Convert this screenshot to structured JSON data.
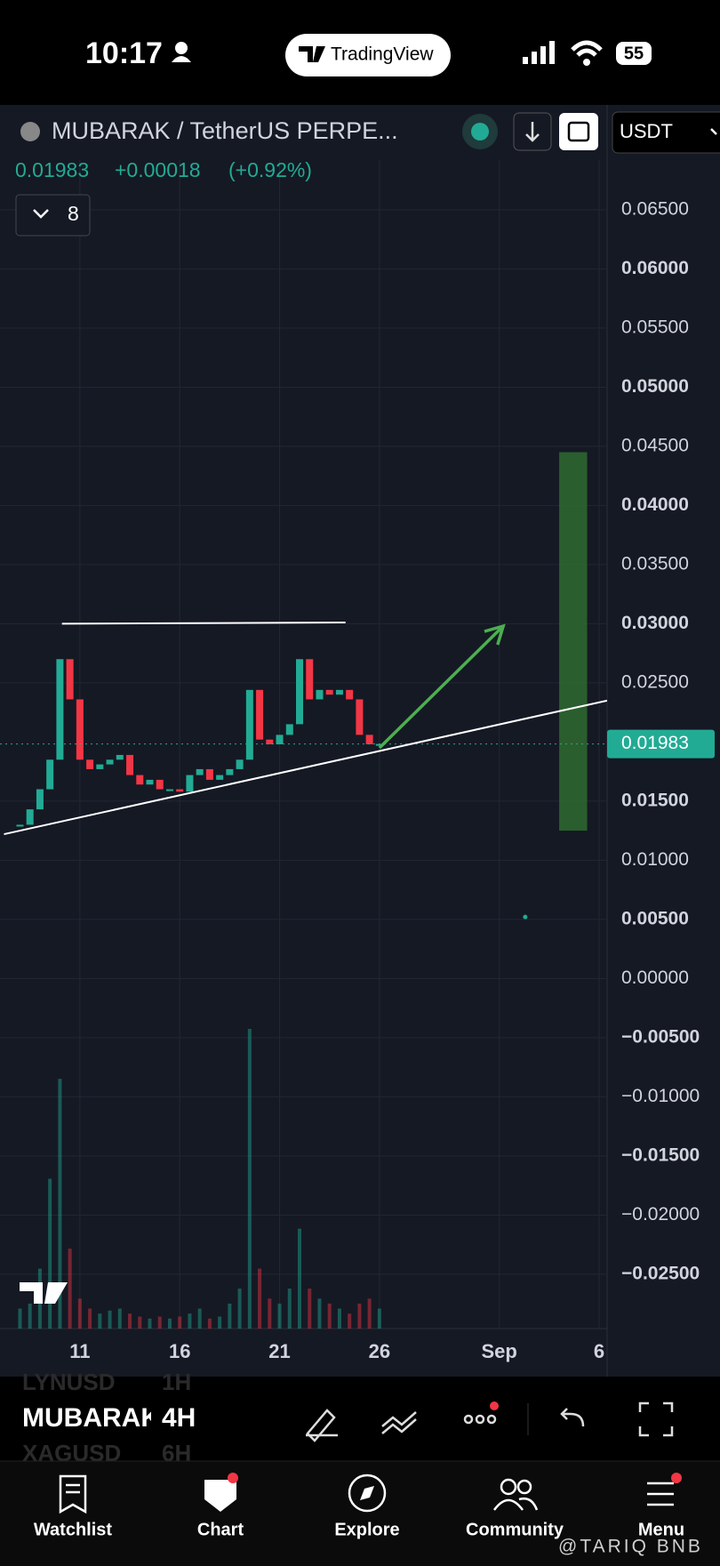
{
  "status_bar": {
    "time": "10:17",
    "app": "TradingView",
    "battery": "55"
  },
  "header": {
    "symbol": "MUBARAK / TetherUS PERPE...",
    "currency": "USDT",
    "change": "+0.00018",
    "change_pct": "(+0.92%)",
    "indicators_count": "8"
  },
  "chart_data": {
    "type": "candlestick",
    "x": [
      8,
      8.5,
      9,
      9.5,
      10,
      10.5,
      11,
      11.5,
      12,
      12.5,
      13,
      13.5,
      14,
      14.5,
      15,
      15.5,
      16,
      16.5,
      17,
      17.5,
      18,
      18.5,
      19,
      19.5,
      20,
      20.5,
      21,
      21.5,
      22,
      22.5,
      23,
      23.5,
      24,
      24.5,
      25,
      25.5,
      26
    ],
    "values": [
      0.013,
      0.0143,
      0.016,
      0.0185,
      0.027,
      0.0236,
      0.0185,
      0.0177,
      0.0181,
      0.0185,
      0.0189,
      0.0172,
      0.0164,
      0.0168,
      0.016,
      0.016,
      0.0158,
      0.0172,
      0.0177,
      0.0168,
      0.0172,
      0.0177,
      0.0185,
      0.0244,
      0.0202,
      0.0198,
      0.0206,
      0.0215,
      0.027,
      0.0236,
      0.0244,
      0.024,
      0.0244,
      0.0236,
      0.0206,
      0.0198,
      0.01983
    ],
    "volume": [
      20,
      25,
      60,
      150,
      250,
      80,
      30,
      20,
      15,
      18,
      20,
      15,
      12,
      10,
      12,
      10,
      12,
      15,
      20,
      10,
      12,
      25,
      40,
      300,
      60,
      30,
      25,
      40,
      100,
      40,
      30,
      25,
      20,
      15,
      25,
      30,
      20
    ],
    "up_color": "#22ab94",
    "down_color": "#f23645",
    "last_price": 0.01983,
    "xlim": [
      7,
      37.4
    ],
    "xticks": [
      11,
      16,
      21,
      26,
      {
        "value": 32,
        "label": "Sep"
      },
      {
        "value": 37,
        "label": "6"
      }
    ],
    "ylim": [
      -0.0296,
      0.0692
    ],
    "yticks": [
      {
        "value": 0.065,
        "label": "0.06500"
      },
      {
        "value": 0.06,
        "label": "0.06000"
      },
      {
        "value": 0.055,
        "label": "0.05500"
      },
      {
        "value": 0.05,
        "label": "0.05000"
      },
      {
        "value": 0.045,
        "label": "0.04500"
      },
      {
        "value": 0.04,
        "label": "0.04000"
      },
      {
        "value": 0.035,
        "label": "0.03500"
      },
      {
        "value": 0.03,
        "label": "0.03000"
      },
      {
        "value": 0.025,
        "label": "0.02500"
      },
      {
        "value": 0.015,
        "label": "0.01500"
      },
      {
        "value": 0.01,
        "label": "0.01000"
      },
      {
        "value": 0.005,
        "label": "0.00500"
      },
      {
        "value": 0,
        "label": "0.00000"
      },
      {
        "value": -0.005,
        "label": "−0.00500"
      },
      {
        "value": -0.01,
        "label": "−0.01000"
      },
      {
        "value": -0.015,
        "label": "−0.01500"
      },
      {
        "value": -0.02,
        "label": "−0.02000"
      },
      {
        "value": -0.025,
        "label": "−0.02500"
      }
    ],
    "grid": true,
    "drawings": {
      "resistance": {
        "x": [
          10.1,
          24.3
        ],
        "y": [
          0.03,
          0.0301
        ]
      },
      "support": {
        "x": [
          7.2,
          37.4
        ],
        "y": [
          0.0122,
          0.0235
        ]
      },
      "arrow": {
        "x": [
          26,
          32.2
        ],
        "y": [
          0.0195,
          0.0298
        ],
        "color": "#4caf50"
      },
      "target_zone": {
        "x": [
          35,
          36.4
        ],
        "y": [
          0.0125,
          0.0445
        ],
        "color": "#2e6b30"
      },
      "marker": {
        "x": [
          33.3
        ],
        "y": [
          0.0052
        ]
      }
    }
  },
  "toolbar": {
    "prev_symbol": "LYNUSD",
    "prev_interval": "1H",
    "symbol": "MUBARAK",
    "interval": "4H",
    "next_symbol": "XAGUSD",
    "next_interval": "6H"
  },
  "tabs": [
    "Watchlist",
    "Chart",
    "Explore",
    "Community",
    "Menu"
  ],
  "watermark": "@TARIQ BNB"
}
